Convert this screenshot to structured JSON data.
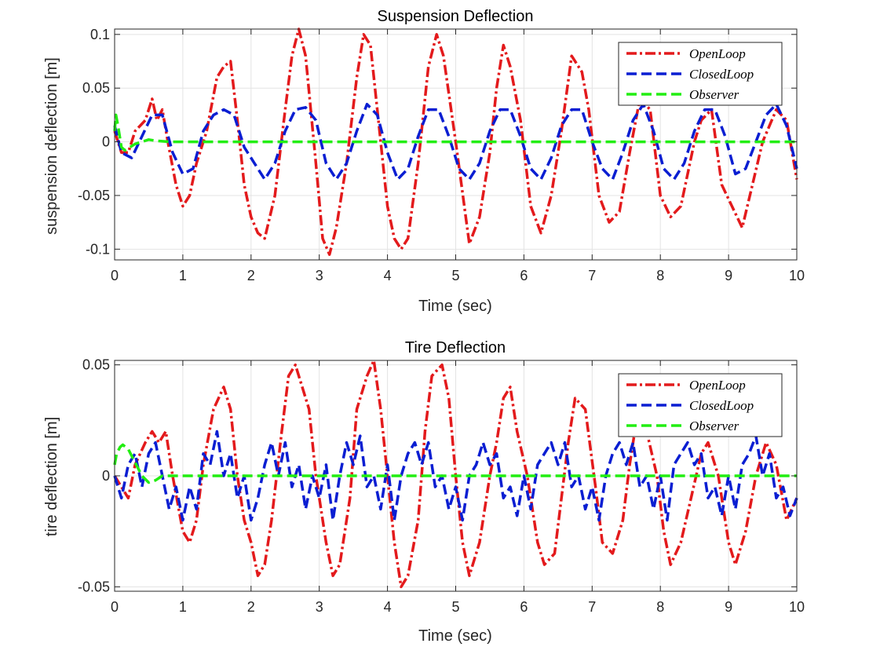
{
  "colors": {
    "open_loop": "#e31a1c",
    "closed_loop": "#0a1ed2",
    "observer": "#22ee11",
    "grid": "#e3e3e3",
    "axes": "#262626"
  },
  "chart_data": [
    {
      "type": "line",
      "title": "Suspension Deflection",
      "xlabel": "Time (sec)",
      "ylabel": "suspension deflection [m]",
      "xlim": [
        0,
        10
      ],
      "ylim": [
        -0.11,
        0.105
      ],
      "xticks": [
        0,
        1,
        2,
        3,
        4,
        5,
        6,
        7,
        8,
        9,
        10
      ],
      "xtick_labels": [
        "0",
        "1",
        "2",
        "3",
        "4",
        "5",
        "6",
        "7",
        "8",
        "9",
        "10"
      ],
      "yticks": [
        -0.1,
        -0.05,
        0,
        0.05,
        0.1
      ],
      "ytick_labels": [
        "-0.1",
        "-0.05",
        "0",
        "0.05",
        "0.1"
      ],
      "grid": true,
      "legend_position": "top-right",
      "legend": [
        "OpenLoop",
        "ClosedLoop",
        "Observer"
      ],
      "series": [
        {
          "name": "OpenLoop",
          "color": "#e31a1c",
          "style": "dash-dot",
          "x": [
            0,
            0.1,
            0.2,
            0.3,
            0.45,
            0.55,
            0.62,
            0.7,
            0.78,
            0.9,
            1.0,
            1.1,
            1.2,
            1.35,
            1.5,
            1.6,
            1.7,
            1.8,
            1.9,
            2.0,
            2.1,
            2.2,
            2.35,
            2.5,
            2.6,
            2.7,
            2.8,
            2.95,
            3.05,
            3.15,
            3.25,
            3.4,
            3.55,
            3.65,
            3.75,
            3.85,
            4.0,
            4.1,
            4.2,
            4.3,
            4.45,
            4.6,
            4.72,
            4.82,
            5.0,
            5.2,
            5.35,
            5.5,
            5.6,
            5.7,
            5.8,
            5.95,
            6.1,
            6.25,
            6.4,
            6.55,
            6.7,
            6.85,
            6.95,
            7.1,
            7.25,
            7.4,
            7.55,
            7.7,
            7.85,
            8.0,
            8.15,
            8.3,
            8.5,
            8.6,
            8.75,
            8.9,
            9.05,
            9.2,
            9.35,
            9.5,
            9.7,
            9.85,
            10.0
          ],
          "y": [
            0.01,
            -0.01,
            -0.01,
            0.01,
            0.02,
            0.04,
            0.02,
            0.03,
            0.0,
            -0.04,
            -0.06,
            -0.05,
            -0.02,
            0.01,
            0.06,
            0.07,
            0.075,
            0.02,
            -0.04,
            -0.07,
            -0.085,
            -0.09,
            -0.05,
            0.03,
            0.08,
            0.105,
            0.08,
            -0.02,
            -0.09,
            -0.105,
            -0.08,
            -0.02,
            0.06,
            0.1,
            0.09,
            0.03,
            -0.06,
            -0.09,
            -0.1,
            -0.09,
            -0.02,
            0.07,
            0.1,
            0.08,
            0.0,
            -0.095,
            -0.07,
            -0.01,
            0.05,
            0.09,
            0.07,
            0.02,
            -0.06,
            -0.085,
            -0.05,
            0.01,
            0.08,
            0.065,
            0.03,
            -0.05,
            -0.075,
            -0.065,
            -0.01,
            0.04,
            0.03,
            -0.05,
            -0.07,
            -0.06,
            0.0,
            0.02,
            0.03,
            -0.04,
            -0.06,
            -0.08,
            -0.04,
            0.0,
            0.03,
            0.02,
            -0.035
          ]
        },
        {
          "name": "ClosedLoop",
          "color": "#0a1ed2",
          "style": "dash",
          "x": [
            0,
            0.1,
            0.25,
            0.4,
            0.55,
            0.7,
            0.85,
            1.0,
            1.15,
            1.3,
            1.45,
            1.6,
            1.75,
            1.9,
            2.05,
            2.2,
            2.35,
            2.5,
            2.65,
            2.8,
            2.95,
            3.1,
            3.25,
            3.4,
            3.55,
            3.7,
            3.85,
            4.0,
            4.15,
            4.3,
            4.45,
            4.6,
            4.75,
            4.9,
            5.05,
            5.2,
            5.35,
            5.5,
            5.65,
            5.8,
            5.95,
            6.1,
            6.25,
            6.4,
            6.55,
            6.7,
            6.85,
            7.0,
            7.15,
            7.3,
            7.45,
            7.6,
            7.75,
            7.9,
            8.05,
            8.2,
            8.35,
            8.5,
            8.65,
            8.8,
            8.95,
            9.1,
            9.25,
            9.4,
            9.55,
            9.7,
            9.85,
            10.0
          ],
          "y": [
            0.015,
            -0.01,
            -0.015,
            0.005,
            0.025,
            0.025,
            -0.01,
            -0.03,
            -0.025,
            0.01,
            0.025,
            0.03,
            0.025,
            -0.005,
            -0.02,
            -0.035,
            -0.02,
            0.01,
            0.03,
            0.032,
            0.02,
            -0.02,
            -0.035,
            -0.02,
            0.01,
            0.035,
            0.025,
            -0.01,
            -0.035,
            -0.025,
            0.005,
            0.03,
            0.03,
            0.005,
            -0.025,
            -0.035,
            -0.02,
            0.01,
            0.03,
            0.03,
            0.005,
            -0.025,
            -0.035,
            -0.015,
            0.015,
            0.03,
            0.03,
            0.0,
            -0.025,
            -0.035,
            -0.01,
            0.02,
            0.035,
            0.01,
            -0.025,
            -0.035,
            -0.02,
            0.01,
            0.03,
            0.03,
            0.005,
            -0.03,
            -0.025,
            0.0,
            0.025,
            0.035,
            0.015,
            -0.025
          ]
        },
        {
          "name": "Observer",
          "color": "#22ee11",
          "style": "dash",
          "x": [
            0,
            0.02,
            0.05,
            0.1,
            0.15,
            0.2,
            0.3,
            0.4,
            0.5,
            0.6,
            0.8,
            1.0,
            2.0,
            4.0,
            6.0,
            8.0,
            10.0
          ],
          "y": [
            0.01,
            0.025,
            0.015,
            -0.005,
            -0.008,
            -0.006,
            -0.002,
            0.0,
            0.002,
            0.001,
            0.0,
            0.0,
            0.0,
            0.0,
            0.0,
            0.0,
            0.0
          ]
        }
      ]
    },
    {
      "type": "line",
      "title": "Tire Deflection",
      "xlabel": "Time (sec)",
      "ylabel": "tire deflection [m]",
      "xlim": [
        0,
        10
      ],
      "ylim": [
        -0.052,
        0.052
      ],
      "xticks": [
        0,
        1,
        2,
        3,
        4,
        5,
        6,
        7,
        8,
        9,
        10
      ],
      "xtick_labels": [
        "0",
        "1",
        "2",
        "3",
        "4",
        "5",
        "6",
        "7",
        "8",
        "9",
        "10"
      ],
      "yticks": [
        -0.05,
        0,
        0.05
      ],
      "ytick_labels": [
        "-0.05",
        "0",
        "0.05"
      ],
      "grid": true,
      "legend_position": "top-right",
      "legend": [
        "OpenLoop",
        "ClosedLoop",
        "Observer"
      ],
      "series": [
        {
          "name": "OpenLoop",
          "color": "#e31a1c",
          "style": "dash-dot",
          "x": [
            0,
            0.1,
            0.2,
            0.3,
            0.45,
            0.55,
            0.65,
            0.75,
            0.85,
            1.0,
            1.1,
            1.2,
            1.3,
            1.45,
            1.6,
            1.7,
            1.8,
            1.9,
            2.0,
            2.1,
            2.2,
            2.3,
            2.45,
            2.55,
            2.65,
            2.75,
            2.85,
            2.95,
            3.1,
            3.2,
            3.3,
            3.45,
            3.55,
            3.7,
            3.8,
            3.9,
            4.0,
            4.1,
            4.2,
            4.3,
            4.45,
            4.55,
            4.65,
            4.8,
            4.9,
            5.0,
            5.1,
            5.2,
            5.35,
            5.5,
            5.6,
            5.7,
            5.8,
            5.9,
            6.05,
            6.2,
            6.3,
            6.45,
            6.55,
            6.65,
            6.75,
            6.9,
            7.05,
            7.15,
            7.3,
            7.45,
            7.55,
            7.65,
            7.8,
            7.95,
            8.05,
            8.15,
            8.3,
            8.45,
            8.6,
            8.7,
            8.85,
            9.0,
            9.1,
            9.25,
            9.4,
            9.55,
            9.7,
            9.85,
            10.0
          ],
          "y": [
            0.0,
            -0.005,
            -0.01,
            0.005,
            0.015,
            0.02,
            0.015,
            0.02,
            0.0,
            -0.025,
            -0.03,
            -0.02,
            0.005,
            0.03,
            0.04,
            0.03,
            0.0,
            -0.02,
            -0.03,
            -0.045,
            -0.04,
            -0.02,
            0.02,
            0.045,
            0.05,
            0.04,
            0.03,
            0.0,
            -0.03,
            -0.045,
            -0.04,
            -0.01,
            0.03,
            0.045,
            0.052,
            0.03,
            0.0,
            -0.03,
            -0.05,
            -0.045,
            -0.02,
            0.02,
            0.045,
            0.05,
            0.035,
            0.0,
            -0.03,
            -0.045,
            -0.03,
            0.0,
            0.015,
            0.035,
            0.04,
            0.02,
            0.0,
            -0.03,
            -0.04,
            -0.035,
            -0.01,
            0.015,
            0.035,
            0.03,
            -0.005,
            -0.03,
            -0.035,
            -0.02,
            0.005,
            0.025,
            0.02,
            0.0,
            -0.025,
            -0.04,
            -0.03,
            -0.01,
            0.01,
            0.015,
            0.0,
            -0.03,
            -0.04,
            -0.025,
            0.0,
            0.015,
            0.005,
            -0.02,
            -0.01
          ]
        },
        {
          "name": "ClosedLoop",
          "color": "#0a1ed2",
          "style": "dash",
          "x": [
            0,
            0.1,
            0.2,
            0.3,
            0.4,
            0.5,
            0.6,
            0.7,
            0.8,
            0.9,
            1.0,
            1.1,
            1.2,
            1.3,
            1.4,
            1.5,
            1.6,
            1.7,
            1.8,
            1.9,
            2.0,
            2.1,
            2.2,
            2.3,
            2.4,
            2.5,
            2.6,
            2.7,
            2.8,
            2.9,
            3.0,
            3.1,
            3.2,
            3.3,
            3.4,
            3.5,
            3.6,
            3.7,
            3.8,
            3.9,
            4.0,
            4.1,
            4.2,
            4.3,
            4.4,
            4.5,
            4.6,
            4.7,
            4.8,
            4.9,
            5.0,
            5.1,
            5.2,
            5.3,
            5.4,
            5.5,
            5.6,
            5.7,
            5.8,
            5.9,
            6.0,
            6.1,
            6.2,
            6.3,
            6.4,
            6.5,
            6.6,
            6.7,
            6.8,
            6.9,
            7.0,
            7.1,
            7.2,
            7.3,
            7.4,
            7.5,
            7.6,
            7.7,
            7.8,
            7.9,
            8.0,
            8.1,
            8.2,
            8.3,
            8.4,
            8.5,
            8.6,
            8.7,
            8.8,
            8.9,
            9.0,
            9.1,
            9.2,
            9.3,
            9.4,
            9.5,
            9.6,
            9.7,
            9.8,
            9.9,
            10.0
          ],
          "y": [
            0.0,
            -0.01,
            0.005,
            0.01,
            -0.005,
            0.01,
            0.015,
            0.0,
            -0.015,
            -0.005,
            -0.02,
            -0.005,
            -0.015,
            0.01,
            0.005,
            0.02,
            0.0,
            0.01,
            -0.01,
            0.0,
            -0.02,
            -0.01,
            0.005,
            0.015,
            0.0,
            0.015,
            -0.005,
            0.005,
            -0.015,
            0.0,
            -0.01,
            0.005,
            -0.02,
            0.0,
            0.015,
            0.005,
            0.018,
            -0.005,
            0.0,
            -0.015,
            0.005,
            -0.02,
            0.0,
            0.01,
            0.015,
            0.005,
            0.015,
            -0.005,
            0.0,
            -0.015,
            -0.005,
            -0.02,
            0.0,
            0.005,
            0.015,
            0.005,
            0.01,
            -0.01,
            -0.005,
            -0.018,
            0.0,
            -0.015,
            0.005,
            0.01,
            0.015,
            0.005,
            0.015,
            -0.005,
            0.0,
            -0.015,
            -0.005,
            -0.02,
            0.0,
            0.01,
            0.015,
            0.005,
            0.015,
            -0.005,
            0.0,
            -0.015,
            0.0,
            -0.02,
            0.005,
            0.01,
            0.015,
            0.005,
            0.01,
            -0.01,
            -0.005,
            -0.018,
            0.0,
            -0.015,
            0.005,
            0.01,
            0.018,
            0.0,
            0.01,
            -0.01,
            -0.005,
            -0.018,
            -0.01
          ]
        },
        {
          "name": "Observer",
          "color": "#22ee11",
          "style": "dash",
          "x": [
            0,
            0.03,
            0.08,
            0.12,
            0.2,
            0.3,
            0.4,
            0.5,
            0.6,
            0.7,
            0.8,
            1.0,
            2.0,
            4.0,
            6.0,
            8.0,
            10.0
          ],
          "y": [
            0.005,
            0.01,
            0.013,
            0.014,
            0.012,
            0.006,
            0.0,
            -0.003,
            -0.002,
            0.0,
            0.0,
            0.0,
            0.0,
            0.0,
            0.0,
            0.0,
            0.0
          ]
        }
      ]
    }
  ]
}
